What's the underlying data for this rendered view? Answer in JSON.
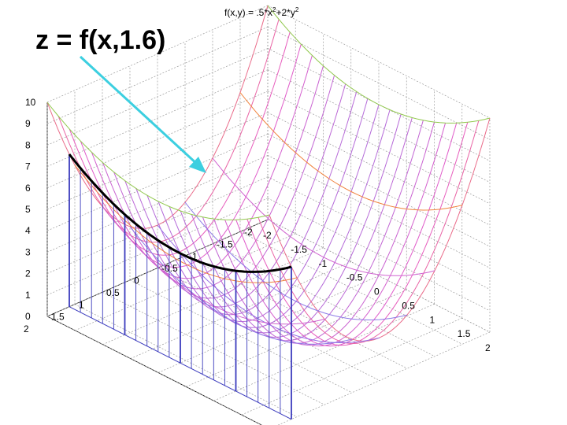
{
  "title": {
    "base": "f(x,y) = .5*x",
    "sup1": "2",
    "mid": "+2*y",
    "sup2": "2"
  },
  "annotation": "z = f(x,1.6)",
  "chart_data": {
    "type": "surface",
    "function": "0.5*x^2 + 2*y^2",
    "slice_y": 1.6,
    "x_ticks": [
      "-2",
      "-1.5",
      "-1",
      "-0.5",
      "0",
      "0.5",
      "1",
      "1.5",
      "2"
    ],
    "y_ticks": [
      "2",
      "1.5",
      "1",
      "0.5",
      "0",
      "-0.5",
      "-1",
      "-1.5",
      "-2"
    ],
    "z_ticks": [
      "0",
      "1",
      "2",
      "3",
      "4",
      "5",
      "6",
      "7",
      "8",
      "9",
      "10"
    ],
    "xlim": [
      -2,
      2
    ],
    "ylim": [
      -2,
      2
    ],
    "zlim": [
      0,
      10
    ],
    "grid": true
  },
  "colors": {
    "slice_curve": "#000000",
    "arrow": "#3ccfe0",
    "drop_lines": "#3b3bbd"
  }
}
